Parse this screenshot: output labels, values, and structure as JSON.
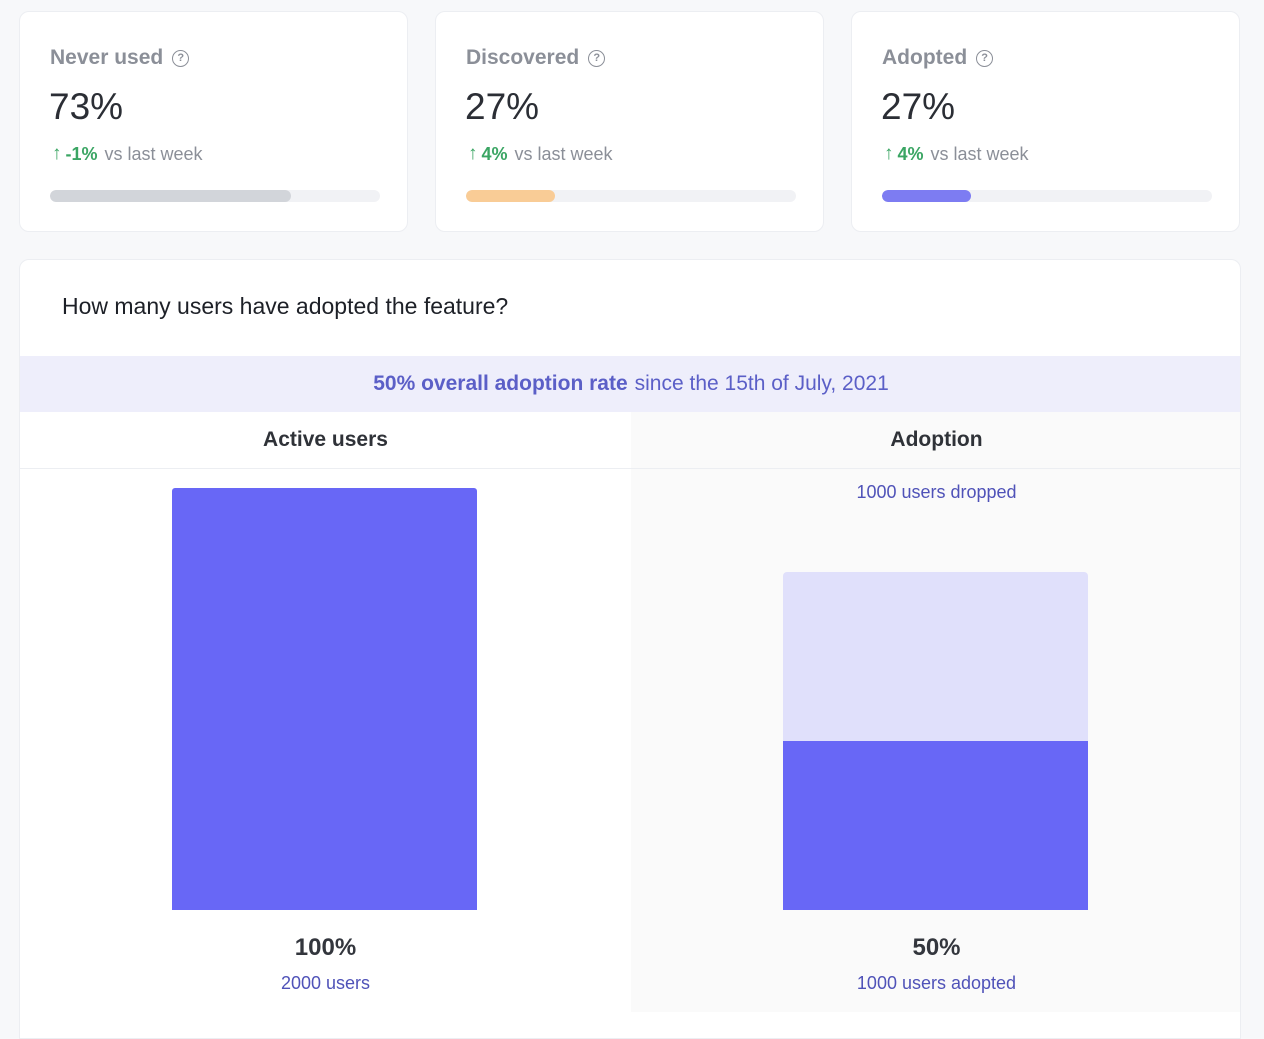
{
  "cards": [
    {
      "title": "Never used",
      "value": "73%",
      "delta": "-1%",
      "delta_suffix": "vs last week",
      "progress": 0.73,
      "color": "#d2d5da"
    },
    {
      "title": "Discovered",
      "value": "27%",
      "delta": "4%",
      "delta_suffix": "vs last week",
      "progress": 0.27,
      "color": "#f9cc96"
    },
    {
      "title": "Adopted",
      "value": "27%",
      "delta": "4%",
      "delta_suffix": "vs last week",
      "progress": 0.27,
      "color": "#7d7cf2"
    }
  ],
  "help_icon": "?",
  "delta_arrow": "↑",
  "panel": {
    "question": "How many users have adopted the feature?",
    "banner_strong": "50% overall adoption rate",
    "banner_rest": "since the 15th of July, 2021",
    "active": {
      "header": "Active users",
      "percent": "100%",
      "count": "2000 users",
      "fraction": 1.0
    },
    "adoption": {
      "header": "Adoption",
      "dropped_label": "1000 users dropped",
      "percent": "50%",
      "count": "1000 users adopted",
      "adopted_fraction": 0.5,
      "total_fraction": 0.8
    }
  },
  "colors": {
    "accent": "#6867f6",
    "dropped": "#e0e0fb",
    "positive": "#3aa563",
    "banner_bg": "#eeeefb"
  }
}
